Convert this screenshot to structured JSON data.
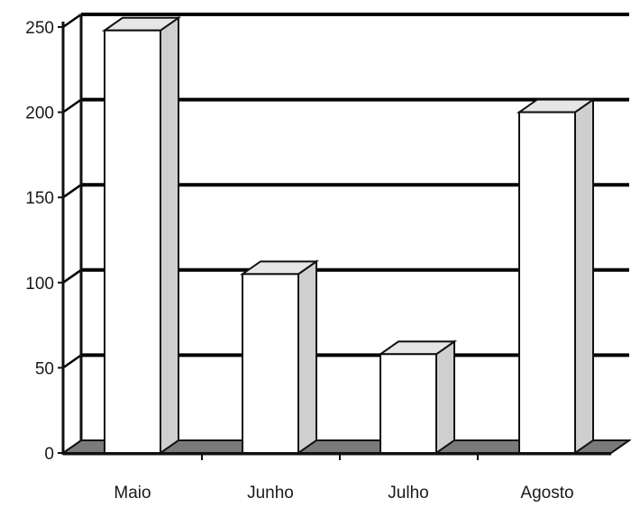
{
  "chart_data": {
    "type": "bar",
    "style": "3d",
    "title": "",
    "xlabel": "",
    "ylabel": "",
    "categories": [
      "Maio",
      "Junho",
      "Julho",
      "Agosto"
    ],
    "values": [
      248,
      105,
      58,
      200
    ],
    "ylim": [
      0,
      250
    ],
    "yticks": [
      0,
      50,
      100,
      150,
      200,
      250
    ],
    "grid": true,
    "legend": "none",
    "colors": {
      "bar_front": "#ffffff",
      "bar_side": "#cfcfcf",
      "bar_top": "#e6e6e6",
      "floor": "#7a7a7a",
      "gridline": "#000000",
      "outline": "#111111"
    }
  }
}
